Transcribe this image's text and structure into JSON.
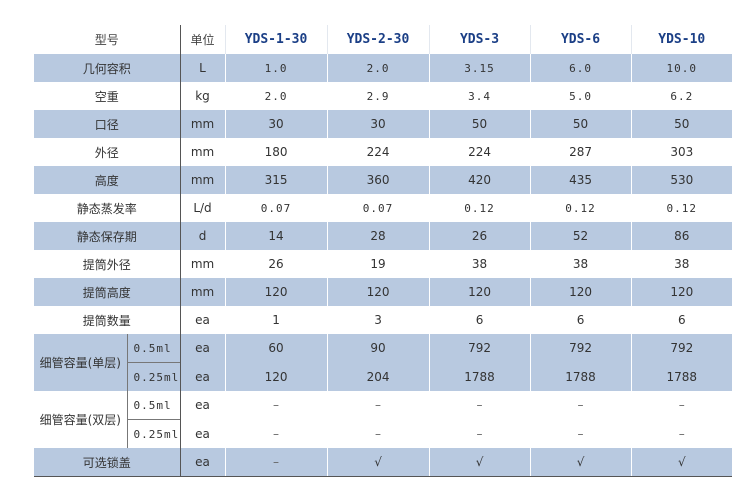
{
  "table": {
    "header": {
      "param": "型号",
      "unit": "单位",
      "models": [
        "YDS-1-30",
        "YDS-2-30",
        "YDS-3",
        "YDS-6",
        "YDS-10"
      ]
    },
    "rows": [
      {
        "label": "几何容积",
        "unit": "L",
        "values": [
          "1.0",
          "2.0",
          "3.15",
          "6.0",
          "10.0"
        ]
      },
      {
        "label": "空重",
        "unit": "kg",
        "values": [
          "2.0",
          "2.9",
          "3.4",
          "5.0",
          "6.2"
        ]
      },
      {
        "label": "口径",
        "unit": "mm",
        "values": [
          "30",
          "30",
          "50",
          "50",
          "50"
        ]
      },
      {
        "label": "外径",
        "unit": "mm",
        "values": [
          "180",
          "224",
          "224",
          "287",
          "303"
        ]
      },
      {
        "label": "高度",
        "unit": "mm",
        "values": [
          "315",
          "360",
          "420",
          "435",
          "530"
        ]
      },
      {
        "label": "静态蒸发率",
        "unit": "L/d",
        "values": [
          "0.07",
          "0.07",
          "0.12",
          "0.12",
          "0.12"
        ]
      },
      {
        "label": "静态保存期",
        "unit": "d",
        "values": [
          "14",
          "28",
          "26",
          "52",
          "86"
        ]
      },
      {
        "label": "提筒外径",
        "unit": "mm",
        "values": [
          "26",
          "19",
          "38",
          "38",
          "38"
        ]
      },
      {
        "label": "提筒高度",
        "unit": "mm",
        "values": [
          "120",
          "120",
          "120",
          "120",
          "120"
        ]
      },
      {
        "label": "提筒数量",
        "unit": "ea",
        "values": [
          "1",
          "3",
          "6",
          "6",
          "6"
        ]
      }
    ],
    "group_single": {
      "label": "细管容量(单层)",
      "rows": [
        {
          "sub": "0.5ml",
          "unit": "ea",
          "values": [
            "60",
            "90",
            "792",
            "792",
            "792"
          ]
        },
        {
          "sub": "0.25ml",
          "unit": "ea",
          "values": [
            "120",
            "204",
            "1788",
            "1788",
            "1788"
          ]
        }
      ]
    },
    "group_double": {
      "label": "细管容量(双层)",
      "rows": [
        {
          "sub": "0.5ml",
          "unit": "ea",
          "values": [
            "–",
            "–",
            "–",
            "–",
            "–"
          ]
        },
        {
          "sub": "0.25ml",
          "unit": "ea",
          "values": [
            "–",
            "–",
            "–",
            "–",
            "–"
          ]
        }
      ]
    },
    "last_row": {
      "label": "可选锁盖",
      "unit": "ea",
      "values": [
        "–",
        "√",
        "√",
        "√",
        "√"
      ]
    }
  }
}
